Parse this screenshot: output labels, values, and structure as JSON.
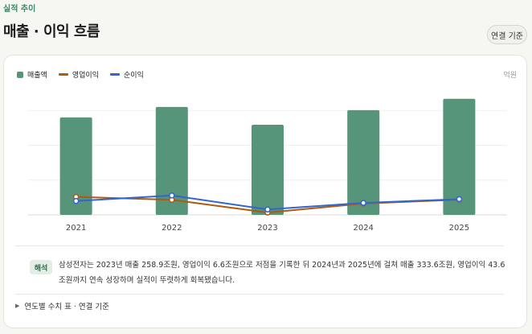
{
  "header": {
    "eyebrow": "실적 추이",
    "title": "매출 · 이익 흐름",
    "basis_button": "연결 기준"
  },
  "legend": [
    {
      "label": "매출액",
      "color": "#56957a",
      "kind": "bar"
    },
    {
      "label": "영업이익",
      "color": "#b0590f",
      "kind": "line"
    },
    {
      "label": "순이익",
      "color": "#2f67cf",
      "kind": "line"
    }
  ],
  "unit": "억원",
  "chart_data": {
    "type": "bar",
    "categories": [
      "2021",
      "2022",
      "2023",
      "2024",
      "2025"
    ],
    "ylim": [
      0,
      400
    ],
    "grid": true,
    "series": [
      {
        "name": "매출액",
        "type": "bar",
        "color": "#56957a",
        "values": [
          280,
          310,
          258.9,
          300.8,
          333.6
        ]
      },
      {
        "name": "영업이익",
        "type": "line",
        "color": "#b0590f",
        "values": [
          51.6,
          43.4,
          6.6,
          32.7,
          43.6
        ]
      },
      {
        "name": "순이익",
        "type": "line",
        "color": "#2f67cf",
        "values": [
          39.9,
          55.7,
          15.5,
          34.5,
          45.2
        ]
      }
    ]
  },
  "interpretation": {
    "chip": "해석",
    "text": "삼성전자는 2023년 매출 258.9조원, 영업이익 6.6조원으로 저점을 기록한 뒤 2024년과 2025년에 걸쳐 매출 333.6조원, 영업이익 43.6조원까지 연속 성장하며 실적이 뚜렷하게 회복됐습니다."
  },
  "details_toggle": "연도별 수치 표 · 연결 기준"
}
